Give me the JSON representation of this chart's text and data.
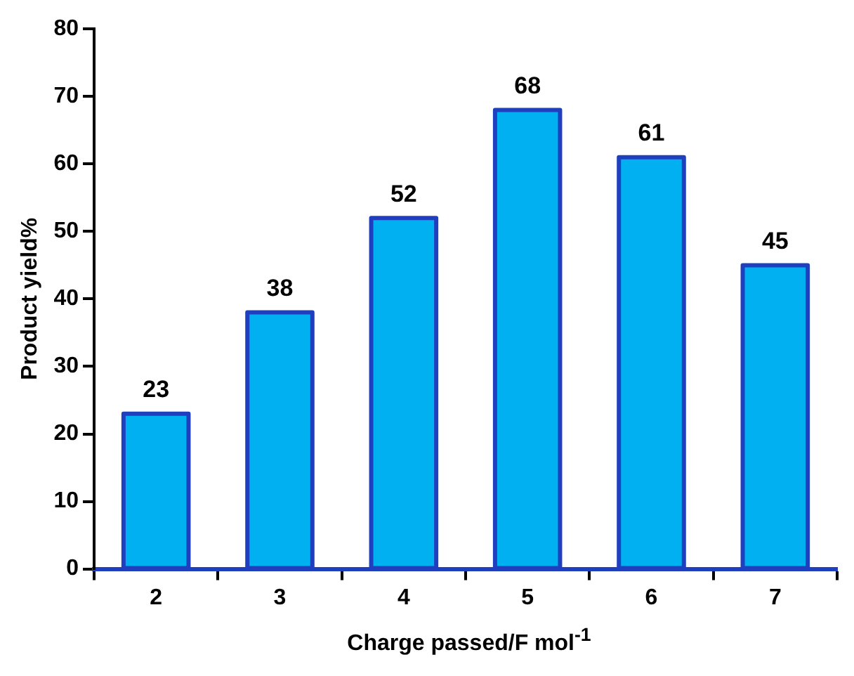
{
  "chart_data": {
    "type": "bar",
    "xlabel": "Charge passed/F mol$^{-1}$",
    "ylabel": "Product yield%",
    "categories": [
      "2",
      "3",
      "4",
      "5",
      "6",
      "7"
    ],
    "values": [
      23,
      38,
      52,
      68,
      61,
      45
    ],
    "color": "#00b0f0",
    "ylim": [
      0,
      80
    ],
    "yticks": [
      0,
      10,
      20,
      30,
      40,
      50,
      60,
      70,
      80
    ],
    "grid": false,
    "data_labels": true,
    "legend": false
  }
}
